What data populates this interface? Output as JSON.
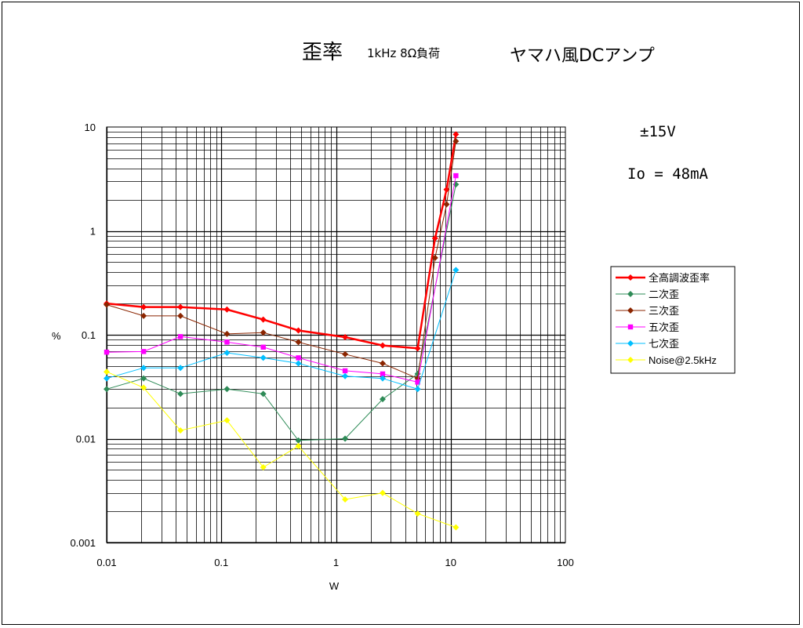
{
  "chart_data": {
    "type": "line",
    "title": "歪率",
    "subtitle": "1kHz 8Ω負荷",
    "amp_title": "ヤマハ風DCアンプ",
    "annotations": [
      "±15V",
      "Io = 48mA"
    ],
    "xlabel": "W",
    "ylabel": "%",
    "xscale": "log",
    "yscale": "log",
    "xlim": [
      0.01,
      100
    ],
    "ylim": [
      0.001,
      10
    ],
    "x_ticks": [
      "0.01",
      "0.1",
      "1",
      "10",
      "100"
    ],
    "y_ticks": [
      "0.001",
      "0.01",
      "0.1",
      "1",
      "10"
    ],
    "grid": true,
    "legend_position": "right",
    "series": [
      {
        "name": "全高調波歪率",
        "color": "#ff0000",
        "marker": "diamond",
        "line_width": 2.5,
        "x": [
          0.01,
          0.021,
          0.044,
          0.112,
          0.232,
          0.47,
          1.2,
          2.55,
          5.15,
          7.3,
          9.2,
          11.1
        ],
        "y": [
          0.2,
          0.185,
          0.185,
          0.175,
          0.14,
          0.11,
          0.095,
          0.079,
          0.074,
          0.85,
          2.5,
          8.5
        ]
      },
      {
        "name": "二次歪",
        "color": "#2e8b57",
        "marker": "diamond",
        "line_width": 1,
        "x": [
          0.01,
          0.021,
          0.044,
          0.112,
          0.232,
          0.47,
          1.2,
          2.55,
          5.15,
          11.1
        ],
        "y": [
          0.03,
          0.038,
          0.027,
          0.03,
          0.027,
          0.0096,
          0.01,
          0.024,
          0.042,
          2.8
        ]
      },
      {
        "name": "三次歪",
        "color": "#8b2500",
        "marker": "diamond",
        "line_width": 1,
        "x": [
          0.01,
          0.021,
          0.044,
          0.112,
          0.232,
          0.47,
          1.2,
          2.55,
          5.15,
          7.3,
          9.2,
          11.1
        ],
        "y": [
          0.195,
          0.152,
          0.152,
          0.102,
          0.105,
          0.085,
          0.065,
          0.053,
          0.038,
          0.55,
          1.8,
          7.3
        ]
      },
      {
        "name": "五次歪",
        "color": "#ff00ff",
        "marker": "square",
        "line_width": 1,
        "x": [
          0.01,
          0.021,
          0.044,
          0.112,
          0.232,
          0.47,
          1.2,
          2.55,
          5.15,
          11.1
        ],
        "y": [
          0.068,
          0.069,
          0.096,
          0.085,
          0.076,
          0.06,
          0.045,
          0.042,
          0.035,
          3.4
        ]
      },
      {
        "name": "七次歪",
        "color": "#00bfff",
        "marker": "diamond",
        "line_width": 1,
        "x": [
          0.01,
          0.021,
          0.044,
          0.112,
          0.232,
          0.47,
          1.2,
          2.55,
          5.15,
          11.1
        ],
        "y": [
          0.038,
          0.048,
          0.048,
          0.067,
          0.06,
          0.053,
          0.04,
          0.038,
          0.03,
          0.42
        ]
      },
      {
        "name": "Noise@2.5kHz",
        "color": "#ffff00",
        "marker": "diamond",
        "line_width": 1,
        "x": [
          0.01,
          0.021,
          0.044,
          0.112,
          0.232,
          0.47,
          1.2,
          2.55,
          5.15,
          11.1
        ],
        "y": [
          0.044,
          0.031,
          0.012,
          0.015,
          0.0053,
          0.0085,
          0.0026,
          0.003,
          0.0019,
          0.0014
        ]
      }
    ]
  }
}
